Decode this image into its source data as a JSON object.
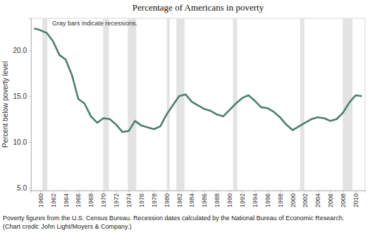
{
  "chart_data": {
    "type": "line",
    "title": "Percentage of Americans in poverty",
    "annotation": "Gray bars indicate recessions.",
    "y_label": "Percent below poverty level",
    "source": "Poverty figures from the U.S. Census Bureau. Recession dates calculated by the National Bureau of Economic Research.",
    "credit": "(Chart credit: John Light/Moyers & Company.)",
    "x": [
      1959,
      1960,
      1961,
      1962,
      1963,
      1964,
      1965,
      1966,
      1967,
      1968,
      1969,
      1970,
      1971,
      1972,
      1973,
      1974,
      1975,
      1976,
      1977,
      1978,
      1979,
      1980,
      1981,
      1982,
      1983,
      1984,
      1985,
      1986,
      1987,
      1988,
      1989,
      1990,
      1991,
      1992,
      1993,
      1994,
      1995,
      1996,
      1997,
      1998,
      1999,
      2000,
      2001,
      2002,
      2003,
      2004,
      2005,
      2006,
      2007,
      2008,
      2009,
      2010,
      2011
    ],
    "values": [
      22.4,
      22.2,
      21.9,
      21.0,
      19.5,
      19.0,
      17.3,
      14.7,
      14.2,
      12.8,
      12.1,
      12.6,
      12.5,
      11.9,
      11.1,
      11.2,
      12.3,
      11.8,
      11.6,
      11.4,
      11.7,
      13.0,
      14.0,
      15.0,
      15.2,
      14.4,
      14.0,
      13.6,
      13.4,
      13.0,
      12.8,
      13.5,
      14.2,
      14.8,
      15.1,
      14.5,
      13.8,
      13.7,
      13.3,
      12.7,
      11.9,
      11.3,
      11.7,
      12.1,
      12.5,
      12.7,
      12.6,
      12.3,
      12.5,
      13.2,
      14.3,
      15.1,
      15.0
    ],
    "color": "#4b7f6b",
    "recessions": [
      {
        "start": 1960.3,
        "end": 1961.1
      },
      {
        "start": 1969.95,
        "end": 1970.85
      },
      {
        "start": 1973.85,
        "end": 1975.2
      },
      {
        "start": 1980.05,
        "end": 1980.5
      },
      {
        "start": 1981.55,
        "end": 1982.85
      },
      {
        "start": 1990.55,
        "end": 1991.2
      },
      {
        "start": 2001.2,
        "end": 2001.85
      },
      {
        "start": 2007.95,
        "end": 2009.5
      }
    ],
    "xlim": [
      1958.5,
      2011.5
    ],
    "ylim": [
      4.7,
      23.5
    ],
    "xticks": [
      1960,
      1962,
      1964,
      1966,
      1968,
      1970,
      1972,
      1974,
      1976,
      1978,
      1980,
      1982,
      1984,
      1986,
      1988,
      1990,
      1992,
      1994,
      1996,
      1998,
      2000,
      2002,
      2004,
      2006,
      2008,
      2010
    ],
    "yticks": [
      {
        "value": 5,
        "label": "5.0"
      },
      {
        "value": 10,
        "label": "10.0"
      },
      {
        "value": 15,
        "label": "15.0"
      },
      {
        "value": 20,
        "label": "20.0"
      }
    ],
    "grid": false
  }
}
